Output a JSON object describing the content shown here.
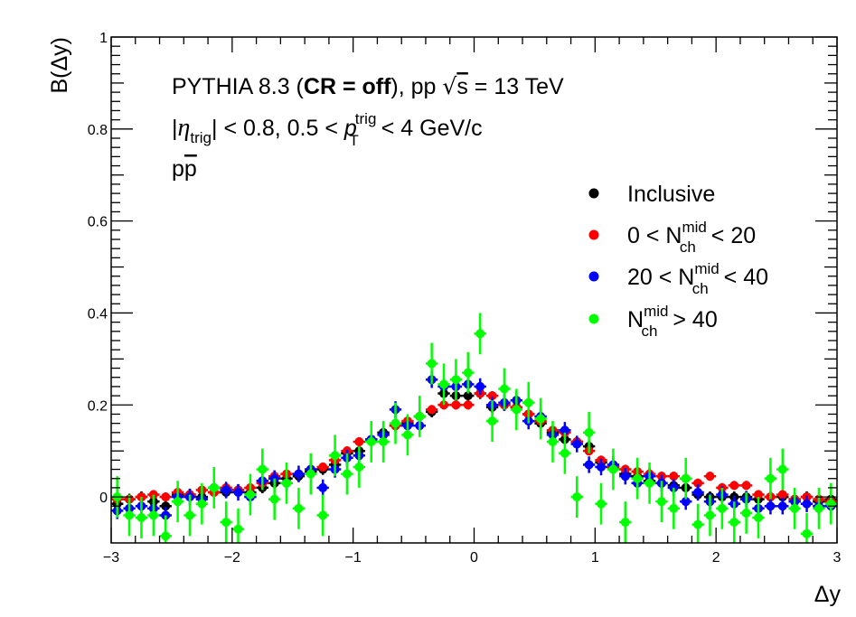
{
  "chart_data": {
    "type": "scatter",
    "xlabel": "Δy",
    "ylabel": "B(Δy)",
    "xlim": [
      -3,
      3
    ],
    "ylim": [
      -0.1,
      1.0
    ],
    "x_ticks": [
      -3,
      -2,
      -1,
      0,
      1,
      2,
      3
    ],
    "x_tick_labels": [
      "−3",
      "−2",
      "−1",
      "0",
      "1",
      "2",
      "3"
    ],
    "y_ticks": [
      0,
      0.2,
      0.4,
      0.6,
      0.8,
      1.0
    ],
    "y_tick_labels": [
      "0",
      "0.2",
      "0.4",
      "0.6",
      "0.8",
      "1"
    ],
    "annotations": {
      "line1_prefix": "PYTHIA 8.3 (",
      "line1_bold": "CR = off",
      "line1_suffix": "), pp ",
      "sqrt_symbol": "√",
      "sqrt_s": "s",
      "line1_energy": " = 13 TeV",
      "eta_bar_open": "|",
      "eta_symbol": "η",
      "eta_sub": "trig",
      "eta_cut": "| < 0.8, 0.5 < ",
      "pt_symbol": "p",
      "pt_sup": "trig",
      "pt_sub": "T",
      "pt_cut": " < 4 GeV/c",
      "pair_p": "p",
      "pair_pbar": "p"
    },
    "legend": {
      "placement": "top-right",
      "entries": [
        {
          "text": "Inclusive",
          "color": "#000000"
        },
        {
          "prefix": "0 < N",
          "sup": "mid",
          "sub": "ch",
          "suffix": " < 20",
          "color": "#ff0000"
        },
        {
          "prefix": "20 < N",
          "sup": "mid",
          "sub": "ch",
          "suffix": " < 40",
          "color": "#0000ff"
        },
        {
          "prefix": "N",
          "sup": "mid",
          "sub": "ch",
          "suffix": " > 40",
          "color": "#00ff00"
        }
      ]
    },
    "series": [
      {
        "name": "Inclusive",
        "color": "#000000",
        "bin_width": 0.1,
        "x": [
          -2.95,
          -2.85,
          -2.75,
          -2.65,
          -2.55,
          -2.45,
          -2.35,
          -2.25,
          -2.15,
          -2.05,
          -1.95,
          -1.85,
          -1.75,
          -1.65,
          -1.55,
          -1.45,
          -1.35,
          -1.25,
          -1.15,
          -1.05,
          -0.95,
          -0.85,
          -0.75,
          -0.65,
          -0.55,
          -0.45,
          -0.35,
          -0.25,
          -0.15,
          -0.05,
          0.05,
          0.15,
          0.25,
          0.35,
          0.45,
          0.55,
          0.65,
          0.75,
          0.85,
          0.95,
          1.05,
          1.15,
          1.25,
          1.35,
          1.45,
          1.55,
          1.65,
          1.75,
          1.85,
          1.95,
          2.05,
          2.15,
          2.25,
          2.35,
          2.45,
          2.55,
          2.65,
          2.75,
          2.85,
          2.95
        ],
        "y": [
          -0.015,
          -0.005,
          0.0,
          -0.01,
          -0.02,
          0.005,
          0.005,
          0.0,
          0.01,
          0.01,
          0.015,
          0.01,
          0.02,
          0.03,
          0.04,
          0.045,
          0.055,
          0.06,
          0.07,
          0.095,
          0.1,
          0.125,
          0.14,
          0.155,
          0.16,
          0.175,
          0.185,
          0.225,
          0.22,
          0.22,
          0.225,
          0.195,
          0.2,
          0.195,
          0.18,
          0.16,
          0.14,
          0.125,
          0.12,
          0.11,
          0.075,
          0.065,
          0.05,
          0.045,
          0.035,
          0.03,
          0.025,
          0.02,
          0.005,
          0.0,
          0.0,
          0.0,
          0.0,
          -0.005,
          0.0,
          0.0,
          -0.005,
          0.0,
          -0.01,
          -0.005
        ],
        "err": [
          0.012,
          0.012,
          0.012,
          0.012,
          0.012,
          0.012,
          0.012,
          0.012,
          0.012,
          0.012,
          0.012,
          0.012,
          0.012,
          0.012,
          0.012,
          0.012,
          0.012,
          0.012,
          0.012,
          0.012,
          0.012,
          0.012,
          0.012,
          0.012,
          0.012,
          0.012,
          0.012,
          0.012,
          0.012,
          0.012,
          0.012,
          0.012,
          0.012,
          0.012,
          0.012,
          0.012,
          0.012,
          0.012,
          0.012,
          0.012,
          0.012,
          0.012,
          0.012,
          0.012,
          0.012,
          0.012,
          0.012,
          0.012,
          0.012,
          0.012,
          0.012,
          0.012,
          0.012,
          0.012,
          0.012,
          0.012,
          0.012,
          0.012,
          0.012,
          0.012
        ]
      },
      {
        "name": "0 < N_ch^mid < 20",
        "color": "#ff0000",
        "bin_width": 0.1,
        "x": [
          -2.95,
          -2.85,
          -2.75,
          -2.65,
          -2.55,
          -2.45,
          -2.35,
          -2.25,
          -2.15,
          -2.05,
          -1.95,
          -1.85,
          -1.75,
          -1.65,
          -1.55,
          -1.45,
          -1.35,
          -1.25,
          -1.15,
          -1.05,
          -0.95,
          -0.85,
          -0.75,
          -0.65,
          -0.55,
          -0.45,
          -0.35,
          -0.25,
          -0.15,
          -0.05,
          0.05,
          0.15,
          0.25,
          0.35,
          0.45,
          0.55,
          0.65,
          0.75,
          0.85,
          0.95,
          1.05,
          1.15,
          1.25,
          1.35,
          1.45,
          1.55,
          1.65,
          1.75,
          1.85,
          1.95,
          2.05,
          2.15,
          2.25,
          2.35,
          2.45,
          2.55,
          2.65,
          2.75,
          2.85,
          2.95
        ],
        "y": [
          -0.005,
          -0.005,
          0.0,
          0.005,
          0.0,
          0.01,
          0.005,
          0.015,
          0.01,
          0.02,
          0.015,
          0.02,
          0.03,
          0.045,
          0.05,
          0.05,
          0.06,
          0.065,
          0.08,
          0.1,
          0.12,
          0.125,
          0.135,
          0.155,
          0.165,
          0.175,
          0.19,
          0.2,
          0.2,
          0.2,
          0.225,
          0.22,
          0.2,
          0.195,
          0.18,
          0.165,
          0.145,
          0.14,
          0.12,
          0.1,
          0.08,
          0.065,
          0.06,
          0.055,
          0.05,
          0.045,
          0.045,
          0.04,
          0.03,
          0.045,
          0.02,
          0.025,
          0.025,
          0.005,
          0.0,
          0.005,
          -0.005,
          0.0,
          -0.005,
          -0.01
        ],
        "err": [
          0.01,
          0.01,
          0.01,
          0.01,
          0.01,
          0.01,
          0.01,
          0.01,
          0.01,
          0.01,
          0.01,
          0.01,
          0.01,
          0.01,
          0.01,
          0.01,
          0.01,
          0.01,
          0.01,
          0.01,
          0.01,
          0.01,
          0.01,
          0.01,
          0.01,
          0.01,
          0.01,
          0.01,
          0.01,
          0.01,
          0.01,
          0.01,
          0.01,
          0.01,
          0.01,
          0.01,
          0.01,
          0.01,
          0.01,
          0.01,
          0.01,
          0.01,
          0.01,
          0.01,
          0.01,
          0.01,
          0.01,
          0.01,
          0.01,
          0.01,
          0.01,
          0.01,
          0.01,
          0.01,
          0.01,
          0.01,
          0.01,
          0.01,
          0.01,
          0.01
        ]
      },
      {
        "name": "20 < N_ch^mid < 40",
        "color": "#0000ff",
        "bin_width": 0.1,
        "x": [
          -2.95,
          -2.85,
          -2.75,
          -2.65,
          -2.55,
          -2.45,
          -2.35,
          -2.25,
          -2.15,
          -2.05,
          -1.95,
          -1.85,
          -1.75,
          -1.65,
          -1.55,
          -1.45,
          -1.35,
          -1.25,
          -1.15,
          -1.05,
          -0.95,
          -0.85,
          -0.75,
          -0.65,
          -0.55,
          -0.45,
          -0.35,
          -0.25,
          -0.15,
          -0.05,
          0.05,
          0.15,
          0.25,
          0.35,
          0.45,
          0.55,
          0.65,
          0.75,
          0.85,
          0.95,
          1.05,
          1.15,
          1.25,
          1.35,
          1.45,
          1.55,
          1.65,
          1.75,
          1.85,
          1.95,
          2.05,
          2.15,
          2.25,
          2.35,
          2.45,
          2.55,
          2.65,
          2.75,
          2.85,
          2.95
        ],
        "y": [
          -0.03,
          -0.025,
          -0.02,
          -0.025,
          -0.04,
          0.0,
          0.0,
          -0.005,
          0.02,
          0.015,
          0.01,
          0.0,
          0.035,
          0.04,
          0.03,
          0.05,
          0.06,
          0.02,
          0.06,
          0.085,
          0.09,
          0.125,
          0.135,
          0.19,
          0.155,
          0.155,
          0.255,
          0.24,
          0.24,
          0.245,
          0.24,
          0.2,
          0.205,
          0.21,
          0.165,
          0.175,
          0.135,
          0.145,
          0.115,
          0.07,
          0.065,
          0.07,
          0.045,
          0.03,
          0.045,
          0.03,
          0.02,
          -0.01,
          0.01,
          -0.01,
          0.005,
          -0.015,
          -0.005,
          -0.025,
          -0.02,
          -0.02,
          -0.01,
          -0.015,
          -0.02,
          -0.02
        ],
        "err": [
          0.018,
          0.018,
          0.018,
          0.018,
          0.018,
          0.018,
          0.018,
          0.018,
          0.018,
          0.018,
          0.018,
          0.018,
          0.018,
          0.018,
          0.018,
          0.018,
          0.018,
          0.018,
          0.018,
          0.018,
          0.018,
          0.018,
          0.018,
          0.018,
          0.018,
          0.018,
          0.018,
          0.018,
          0.018,
          0.018,
          0.018,
          0.018,
          0.018,
          0.018,
          0.018,
          0.018,
          0.018,
          0.018,
          0.018,
          0.018,
          0.018,
          0.018,
          0.018,
          0.018,
          0.018,
          0.018,
          0.018,
          0.018,
          0.018,
          0.018,
          0.018,
          0.018,
          0.018,
          0.018,
          0.018,
          0.018,
          0.018,
          0.018,
          0.018,
          0.018
        ]
      },
      {
        "name": "N_ch^mid > 40",
        "color": "#00ff00",
        "bin_width": 0.1,
        "x": [
          -2.95,
          -2.85,
          -2.75,
          -2.65,
          -2.55,
          -2.45,
          -2.35,
          -2.25,
          -2.15,
          -2.05,
          -1.95,
          -1.85,
          -1.75,
          -1.65,
          -1.55,
          -1.45,
          -1.35,
          -1.25,
          -1.15,
          -1.05,
          -0.95,
          -0.85,
          -0.75,
          -0.65,
          -0.55,
          -0.45,
          -0.35,
          -0.25,
          -0.15,
          -0.05,
          0.05,
          0.15,
          0.25,
          0.35,
          0.45,
          0.55,
          0.65,
          0.75,
          0.85,
          0.95,
          1.05,
          1.15,
          1.25,
          1.35,
          1.45,
          1.55,
          1.65,
          1.75,
          1.85,
          1.95,
          2.05,
          2.15,
          2.25,
          2.35,
          2.45,
          2.55,
          2.65,
          2.75,
          2.85,
          2.95
        ],
        "y": [
          0.0,
          -0.04,
          -0.045,
          -0.04,
          -0.085,
          -0.01,
          -0.04,
          -0.015,
          0.02,
          -0.055,
          -0.07,
          0.005,
          0.06,
          -0.005,
          0.03,
          -0.025,
          0.05,
          -0.04,
          0.09,
          0.05,
          0.065,
          0.12,
          0.12,
          0.16,
          0.135,
          0.175,
          0.29,
          0.245,
          0.255,
          0.27,
          0.355,
          0.165,
          0.235,
          0.19,
          0.205,
          0.17,
          0.12,
          0.095,
          0.0,
          0.14,
          -0.015,
          0.06,
          -0.055,
          0.04,
          0.03,
          -0.01,
          -0.025,
          0.04,
          -0.06,
          -0.04,
          -0.025,
          -0.055,
          -0.035,
          -0.045,
          0.04,
          0.06,
          -0.025,
          -0.08,
          -0.025,
          -0.015
        ],
        "err": [
          0.045,
          0.045,
          0.045,
          0.045,
          0.045,
          0.045,
          0.045,
          0.045,
          0.045,
          0.045,
          0.045,
          0.045,
          0.045,
          0.045,
          0.045,
          0.045,
          0.045,
          0.045,
          0.045,
          0.045,
          0.045,
          0.045,
          0.045,
          0.045,
          0.045,
          0.045,
          0.045,
          0.045,
          0.045,
          0.045,
          0.045,
          0.045,
          0.045,
          0.045,
          0.045,
          0.045,
          0.045,
          0.045,
          0.045,
          0.045,
          0.045,
          0.045,
          0.045,
          0.045,
          0.045,
          0.045,
          0.045,
          0.045,
          0.045,
          0.045,
          0.045,
          0.045,
          0.045,
          0.045,
          0.045,
          0.045,
          0.045,
          0.045,
          0.045,
          0.045
        ]
      }
    ]
  }
}
